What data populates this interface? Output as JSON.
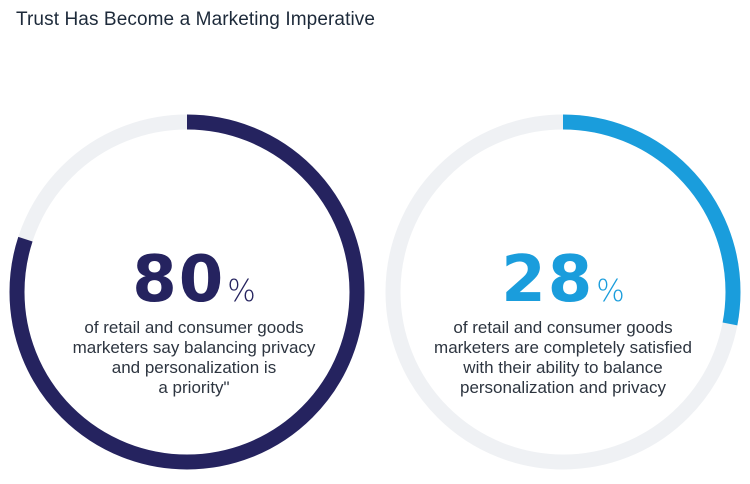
{
  "page": {
    "title": "Trust Has Become a Marketing Imperative"
  },
  "colors": {
    "track": "#eff1f4",
    "navy": "#25235f",
    "blue": "#1a9ddc"
  },
  "chart_data": [
    {
      "type": "donut",
      "value": 80,
      "unit": "%",
      "value_label": "80",
      "unit_label": "%",
      "description_lines": [
        "of retail and consumer goods",
        "marketers say balancing privacy",
        "and personalization is",
        "a priority\""
      ],
      "color": "#25235f"
    },
    {
      "type": "donut",
      "value": 28,
      "unit": "%",
      "value_label": "28",
      "unit_label": "%",
      "description_lines": [
        "of retail and consumer goods",
        "marketers are completely satisfied",
        "with their ability to balance",
        "personalization and privacy"
      ],
      "color": "#1a9ddc"
    }
  ]
}
